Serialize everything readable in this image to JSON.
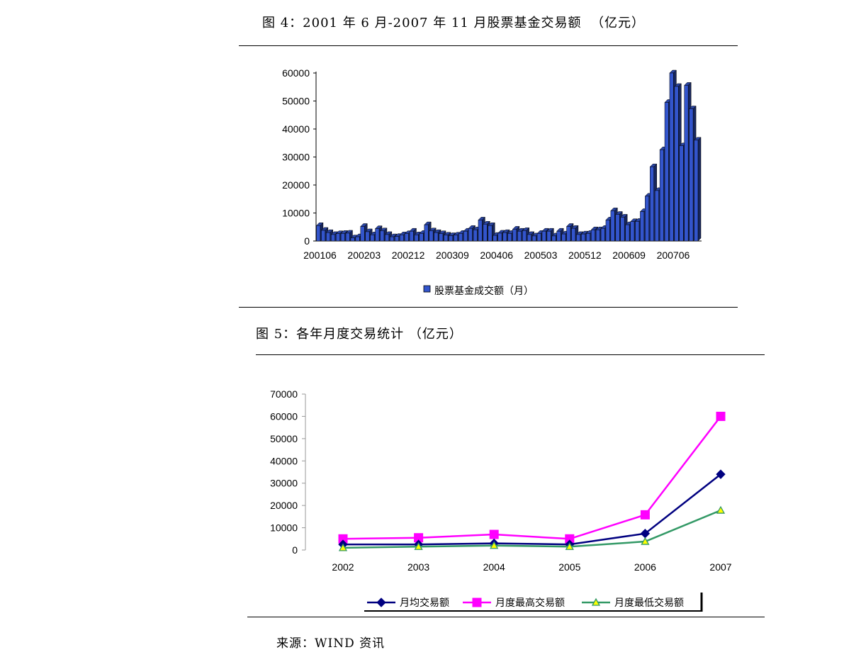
{
  "figure4": {
    "caption": "图 4：2001 年 6 月-2007 年 11 月股票基金交易额  （亿元）"
  },
  "figure5": {
    "caption": "图 5：各年月度交易统计 （亿元）"
  },
  "source": {
    "text": "来源：WIND 资讯"
  },
  "chart_data": [
    {
      "type": "bar",
      "title": "",
      "categories": [
        "200106",
        "200107",
        "200108",
        "200109",
        "200110",
        "200111",
        "200112",
        "200201",
        "200202",
        "200203",
        "200204",
        "200205",
        "200206",
        "200207",
        "200208",
        "200209",
        "200210",
        "200211",
        "200212",
        "200301",
        "200302",
        "200303",
        "200304",
        "200305",
        "200306",
        "200307",
        "200308",
        "200309",
        "200310",
        "200311",
        "200312",
        "200401",
        "200402",
        "200403",
        "200404",
        "200405",
        "200406",
        "200407",
        "200408",
        "200409",
        "200410",
        "200411",
        "200412",
        "200501",
        "200502",
        "200503",
        "200504",
        "200505",
        "200506",
        "200507",
        "200508",
        "200509",
        "200510",
        "200511",
        "200512",
        "200601",
        "200602",
        "200603",
        "200604",
        "200605",
        "200606",
        "200607",
        "200608",
        "200609",
        "200610",
        "200611",
        "200612",
        "200701",
        "200702",
        "200703",
        "200704",
        "200705",
        "200706",
        "200707",
        "200708",
        "200709",
        "200710",
        "200711"
      ],
      "x_tick_labels": [
        "200106",
        "200203",
        "200212",
        "200309",
        "200406",
        "200503",
        "200512",
        "200609",
        "200706"
      ],
      "series": [
        {
          "name": "股票基金成交额（月）",
          "color": "#3355cc",
          "values": [
            5500,
            3800,
            3000,
            2300,
            2600,
            2700,
            2800,
            1100,
            1500,
            5200,
            3300,
            2200,
            4400,
            3600,
            2300,
            1500,
            1600,
            2200,
            2600,
            3500,
            2200,
            2700,
            5800,
            3600,
            3000,
            2600,
            2100,
            1900,
            2100,
            2700,
            3500,
            4500,
            4000,
            7500,
            6000,
            5500,
            2000,
            2800,
            3000,
            2700,
            4200,
            3500,
            3700,
            2300,
            1800,
            2700,
            3500,
            3500,
            1800,
            3500,
            2500,
            5200,
            4500,
            2300,
            2500,
            2700,
            4000,
            4000,
            4500,
            7500,
            10800,
            9500,
            8500,
            5800,
            6900,
            7000,
            10500,
            16000,
            26500,
            18000,
            32600,
            49500,
            60000,
            55200,
            34000,
            55600,
            47200,
            36000
          ]
        }
      ],
      "ylim": [
        0,
        60000
      ],
      "yticks": [
        0,
        10000,
        20000,
        30000,
        40000,
        50000,
        60000
      ],
      "grid": false,
      "legend": "bottom"
    },
    {
      "type": "line",
      "title": "",
      "categories": [
        "2002",
        "2003",
        "2004",
        "2005",
        "2006",
        "2007"
      ],
      "series": [
        {
          "name": "月均交易额",
          "color": "#000080",
          "marker": "diamond",
          "values": [
            2500,
            2500,
            3000,
            2500,
            7400,
            34000
          ]
        },
        {
          "name": "月度最高交易额",
          "color": "#ff00ff",
          "marker": "square",
          "values": [
            5000,
            5500,
            7000,
            5000,
            15800,
            60000
          ]
        },
        {
          "name": "月度最低交易额",
          "color": "#339966",
          "marker": "triangle",
          "values": [
            1000,
            1500,
            2000,
            1500,
            3800,
            17800
          ]
        }
      ],
      "ylim": [
        0,
        70000
      ],
      "yticks": [
        0,
        10000,
        20000,
        30000,
        40000,
        50000,
        60000,
        70000
      ],
      "grid": false,
      "legend": "bottom"
    }
  ]
}
